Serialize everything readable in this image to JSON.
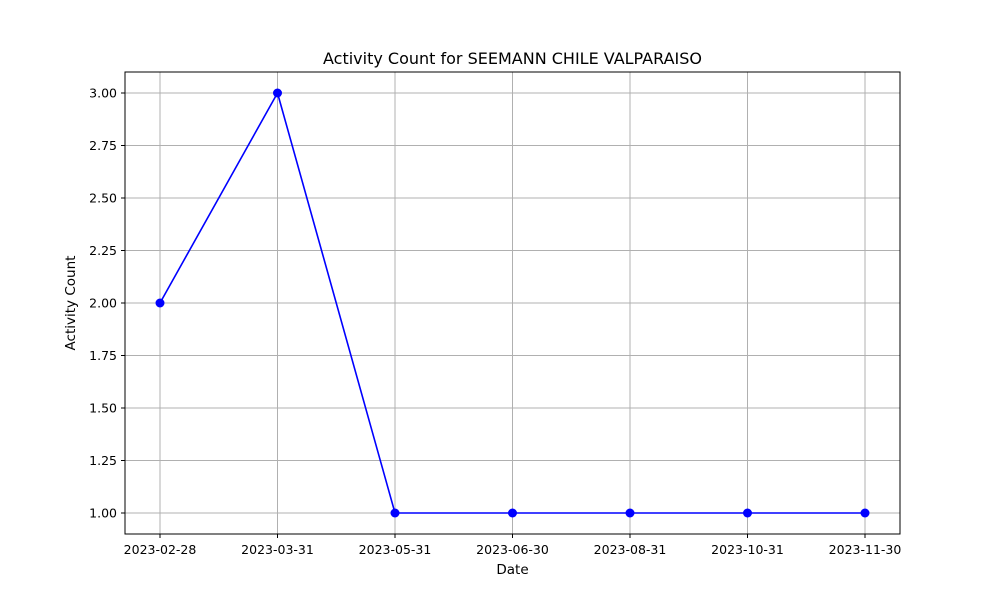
{
  "chart_data": {
    "type": "line",
    "title": "Activity Count for SEEMANN CHILE VALPARAISO",
    "xlabel": "Date",
    "ylabel": "Activity Count",
    "categories": [
      "2023-02-28",
      "2023-03-31",
      "2023-05-31",
      "2023-06-30",
      "2023-08-31",
      "2023-10-31",
      "2023-11-30"
    ],
    "series": [
      {
        "values": [
          2,
          3,
          1,
          1,
          1,
          1,
          1
        ],
        "color": "#0000ff",
        "marker": "circle"
      }
    ],
    "ylim": [
      0.9,
      3.1
    ],
    "yticks": [
      1.0,
      1.25,
      1.5,
      1.75,
      2.0,
      2.25,
      2.5,
      2.75,
      3.0
    ],
    "ytick_labels": [
      "1.00",
      "1.25",
      "1.50",
      "1.75",
      "2.00",
      "2.25",
      "2.50",
      "2.75",
      "3.00"
    ],
    "grid": true,
    "grid_color": "#b0b0b0"
  }
}
